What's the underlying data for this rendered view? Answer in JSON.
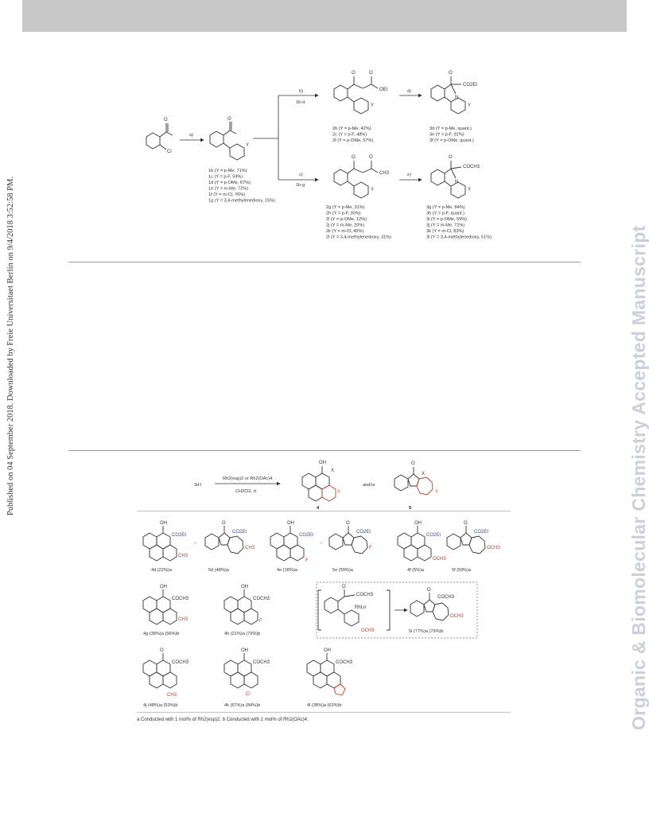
{
  "header": {
    "bar_color": "#c8c8c8"
  },
  "watermark": {
    "text": "Organic & Biomolecular Chemistry Accepted Manuscript",
    "color": "#c9cfdc"
  },
  "side_note": {
    "text": "Published on 04 September 2018. Downloaded by Freie Universitaet Berlin on 9/4/2018 3:52:58 PM."
  },
  "scheme1": {
    "reagent_a": "a)",
    "reagent_b": "b)",
    "reagent_b_sub": "1b-d",
    "reagent_c": "c)",
    "reagent_c_sub": "1b-g",
    "reagent_d": "d)",
    "reagent_e": "e)",
    "start_atoms": {
      "o": "O",
      "cl": "Cl"
    },
    "b_atoms": {
      "o1": "O",
      "o2": "O",
      "oet": "OEt"
    },
    "c_atoms": {
      "o1": "O",
      "o2": "O",
      "me": "CH3"
    },
    "d_atoms": {
      "o": "O",
      "co2et": "CO2Et",
      "n": "N"
    },
    "e_atoms": {
      "o": "O",
      "coch3": "COCH3",
      "n": "N"
    },
    "y": "Y",
    "list_1": [
      "1b (Y = p-Me, 71%)",
      "1c (Y = p-F, 59%)",
      "1d (Y = p-OMe, 67%)",
      "1e (Y = m-Me, 72%)",
      "1f (Y = m-Cl, 76%)",
      "1g (Y = 3,4-methylenedioxy, 15%)"
    ],
    "list_2b": [
      "2b (Y = p-Me, 42%)",
      "2c (Y = p-F, 48%)",
      "2f (Y = p-OMe, 57%)"
    ],
    "list_3b": [
      "3d (Y = p-Me, quant.)",
      "3e (Y = p-F, 92%)",
      "3f (Y = p-OMe, quant.)"
    ],
    "list_2g": [
      "2g (Y = p-Me, 31%)",
      "2h (Y = p-F, 30%)",
      "2i (Y = p-OMe, 12%)",
      "2j (Y = m-Me, 20%)",
      "2k (Y = m-Cl, 45%)",
      "2l (Y = 3,4-methylenedioxy, 31%)"
    ],
    "list_3g": [
      "3g (Y = p-Me, 84%)",
      "3h (Y = p-F, quant.)",
      "3i (Y = p-OMe, 59%)",
      "3j (Y = m-Me, 72%)",
      "3k (Y = m-Cl, 83%)",
      "3l (Y = 3,4-methylenedioxy, 51%)"
    ]
  },
  "scheme2": {
    "substrate": "3d-l",
    "conditions_1": "Rh2(esp)2 or Rh2(OAc)4",
    "conditions_2": "CH2Cl2, rt",
    "and_or": "and/or",
    "product_4": "4",
    "product_5": "5",
    "x": "X",
    "y": "Y",
    "oh": "OH",
    "o": "O",
    "co2et": "CO2Et",
    "coch3": "COCH3",
    "ch3": "CH3",
    "och3": "OCH3",
    "f": "F",
    "cl": "Cl",
    "rhl": "RhLn",
    "dash": "–",
    "labels": {
      "4d": "4d (22%)a",
      "5d": "5d (48%)a",
      "4e": "4e (18%)a",
      "5e": "5e (59%)a",
      "4f": "4f (5%)a",
      "5f": "5f (59%)a",
      "4g": "4g (38%)a (56%)b",
      "4h": "4h (21%)a (79%)b",
      "5i": "5i (77%)a (79%)b",
      "4j": "4j (48%)a (53%)b",
      "4k": "4k (67%)a (84%)b",
      "4l": "4l (38%)a (63%)b"
    }
  },
  "footnote": "a Conducted with 1 mol% of Rh2(esp)2. b Conducted with 1 mol% of Rh2(OAc)4."
}
